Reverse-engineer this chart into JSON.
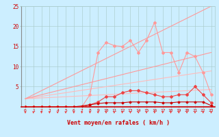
{
  "title": "",
  "xlabel": "Vent moyen/en rafales ( km/h )",
  "background_color": "#cceeff",
  "grid_color": "#aacccc",
  "xlim": [
    -0.5,
    23.5
  ],
  "ylim": [
    0,
    25
  ],
  "yticks": [
    5,
    10,
    15,
    20,
    25
  ],
  "xticks": [
    0,
    1,
    2,
    3,
    4,
    5,
    6,
    7,
    8,
    9,
    10,
    11,
    12,
    13,
    14,
    15,
    16,
    17,
    18,
    19,
    20,
    21,
    22,
    23
  ],
  "x": [
    0,
    1,
    2,
    3,
    4,
    5,
    6,
    7,
    8,
    9,
    10,
    11,
    12,
    13,
    14,
    15,
    16,
    17,
    18,
    19,
    20,
    21,
    22,
    23
  ],
  "line_rafales": [
    0,
    0,
    0,
    0,
    0,
    0,
    0,
    0,
    3.0,
    13.5,
    16.0,
    15.2,
    15.0,
    16.5,
    13.5,
    16.5,
    21.0,
    13.5,
    13.5,
    8.5,
    13.5,
    12.5,
    8.5,
    3.0
  ],
  "line_moyen": [
    0,
    0,
    0,
    0,
    0,
    0,
    0,
    0,
    0.5,
    1.2,
    2.5,
    2.5,
    3.5,
    4.0,
    4.0,
    3.5,
    3.0,
    2.5,
    2.5,
    3.0,
    3.0,
    5.0,
    3.0,
    1.0
  ],
  "line_ref1": [
    2.0,
    2.1,
    2.2,
    2.3,
    2.4,
    2.5,
    2.6,
    2.7,
    2.8,
    2.9,
    3.0,
    3.1,
    3.2,
    3.3,
    3.4,
    3.5,
    3.6,
    3.7,
    3.8,
    3.9,
    4.0,
    4.1,
    4.2,
    4.3
  ],
  "line_ref2": [
    2.0,
    2.3,
    2.6,
    2.9,
    3.2,
    3.5,
    3.8,
    4.1,
    4.4,
    4.7,
    5.0,
    5.3,
    5.6,
    5.9,
    6.2,
    6.5,
    6.8,
    7.1,
    7.4,
    7.7,
    8.0,
    8.3,
    8.6,
    8.9
  ],
  "line_ref3": [
    2.0,
    2.5,
    3.0,
    3.5,
    4.0,
    4.5,
    5.0,
    5.5,
    6.0,
    6.5,
    7.0,
    7.5,
    8.0,
    8.5,
    9.0,
    9.5,
    10.0,
    10.5,
    11.0,
    11.5,
    12.0,
    12.5,
    13.0,
    13.5
  ],
  "line_ref4": [
    2.0,
    3.0,
    4.0,
    5.0,
    6.0,
    7.0,
    8.0,
    9.0,
    10.0,
    11.0,
    12.0,
    13.0,
    14.0,
    15.0,
    16.0,
    17.0,
    18.0,
    19.0,
    20.0,
    21.0,
    22.0,
    23.0,
    24.0,
    25.0
  ],
  "line_flat1": [
    0,
    0,
    0,
    0,
    0,
    0,
    0,
    0.2,
    0.5,
    0.8,
    1.0,
    1.0,
    1.0,
    1.2,
    1.2,
    1.2,
    1.2,
    1.0,
    1.0,
    1.2,
    1.2,
    1.2,
    1.2,
    0.3
  ],
  "color_dark": "#cc0000",
  "color_medium": "#ee4444",
  "color_light": "#ff9999",
  "color_vlight": "#ffbbbb",
  "marker_d": "D",
  "marker_p": "+",
  "lw": 0.8
}
